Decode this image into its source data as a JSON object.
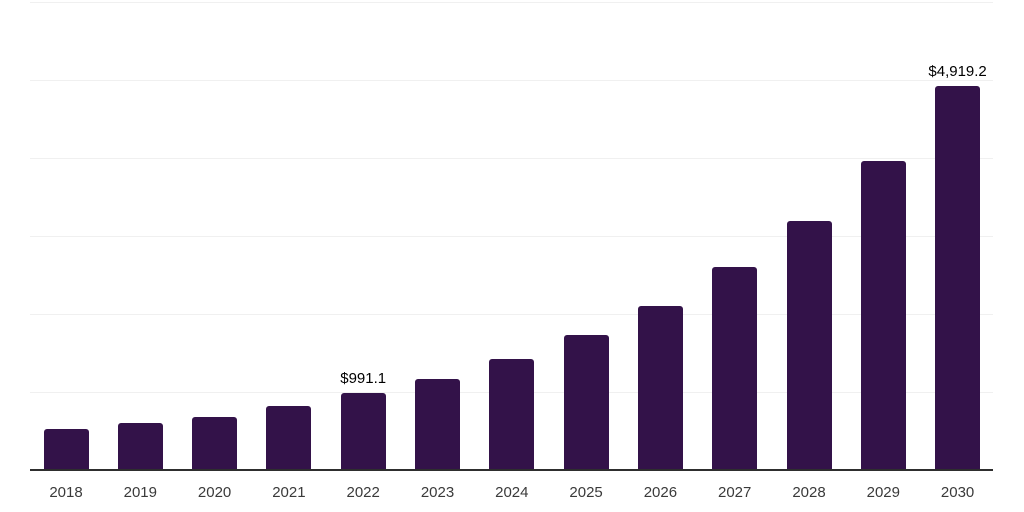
{
  "chart_data": {
    "type": "bar",
    "title": "",
    "xlabel": "",
    "ylabel": "",
    "categories": [
      "2018",
      "2019",
      "2020",
      "2021",
      "2022",
      "2023",
      "2024",
      "2025",
      "2026",
      "2027",
      "2028",
      "2029",
      "2030"
    ],
    "values": [
      520,
      605,
      685,
      825,
      991.1,
      1165,
      1420,
      1730,
      2100,
      2600,
      3190,
      3960,
      4919.2
    ],
    "data_labels": [
      {
        "category": "2022",
        "text": "$991.1"
      },
      {
        "category": "2030",
        "text": "$4,919.2"
      }
    ],
    "ylim": [
      0,
      6000
    ],
    "grid_step": 1000,
    "grid_on": true,
    "legend_position": "none",
    "colors": {
      "bar": "#331249",
      "gridline": "#f0f0f0",
      "axis_line": "#2e2e2e",
      "x_tick_label": "#3a3a3a",
      "data_label": "#000000",
      "background": "#ffffff"
    }
  }
}
